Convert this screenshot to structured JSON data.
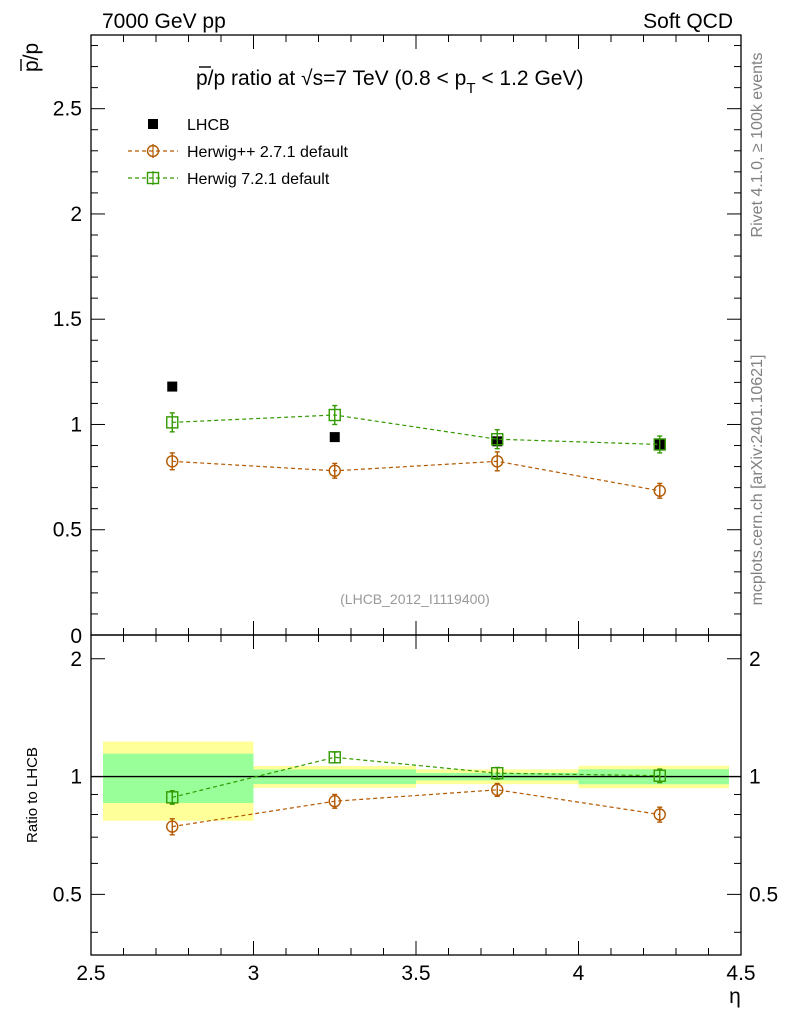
{
  "header": {
    "left_label": "7000 GeV pp",
    "right_label": "Soft QCD"
  },
  "side_text": {
    "rivet": "Rivet 4.1.0, ≥ 100k events",
    "mcplots": "mcplots.cern.ch [arXiv:2401.10621]"
  },
  "chart_data": {
    "type": "scatter",
    "title_parts": {
      "lead": "p/p ratio at √s=7 TeV (0.8 < p",
      "sub": "T",
      "tail": " < 1.2 GeV)"
    },
    "ylabel": "p/p",
    "xlabel": "η",
    "ratio_ylabel": "Ratio to LHCB",
    "analysis_label": "(LHCB_2012_I1119400)",
    "xlim": [
      2.5,
      4.5
    ],
    "ylim": [
      0,
      2.85
    ],
    "ratio_ylim": [
      0.35,
      2.3
    ],
    "x_ticks": [
      "2.5",
      "3",
      "3.5",
      "4",
      "4.5"
    ],
    "y_ticks": [
      "0.5",
      "1",
      "1.5",
      "2",
      "2.5"
    ],
    "y_zero_label": "0",
    "ratio_ticks": [
      "0.5",
      "1",
      "2"
    ],
    "bins": [
      [
        2.5,
        3.0
      ],
      [
        3.0,
        3.5
      ],
      [
        3.5,
        4.0
      ],
      [
        4.0,
        4.5
      ]
    ],
    "x": [
      2.75,
      3.25,
      3.75,
      4.25
    ],
    "series": [
      {
        "name": "LHCB",
        "color": "#000000",
        "marker": "filled-square",
        "values": [
          1.18,
          0.94,
          0.92,
          0.905
        ],
        "band_green": [
          0.17,
          0.04,
          0.02,
          0.04
        ],
        "band_yellow": [
          0.27,
          0.06,
          0.04,
          0.06
        ]
      },
      {
        "name": "Herwig++ 2.7.1 default",
        "color": "#b35900",
        "marker": "open-circle",
        "values": [
          0.825,
          0.78,
          0.825,
          0.685
        ],
        "errors": [
          0.04,
          0.035,
          0.045,
          0.035
        ],
        "ratio": [
          0.745,
          0.865,
          0.925,
          0.8
        ],
        "ratio_errors": [
          0.035,
          0.035,
          0.035,
          0.035
        ]
      },
      {
        "name": "Herwig 7.2.1 default",
        "color": "#339900",
        "marker": "open-square",
        "values": [
          1.01,
          1.045,
          0.93,
          0.905
        ],
        "errors": [
          0.045,
          0.045,
          0.045,
          0.04
        ],
        "ratio": [
          0.885,
          1.12,
          1.02,
          1.005
        ],
        "ratio_errors": [
          0.035,
          0.035,
          0.035,
          0.04
        ]
      }
    ]
  }
}
